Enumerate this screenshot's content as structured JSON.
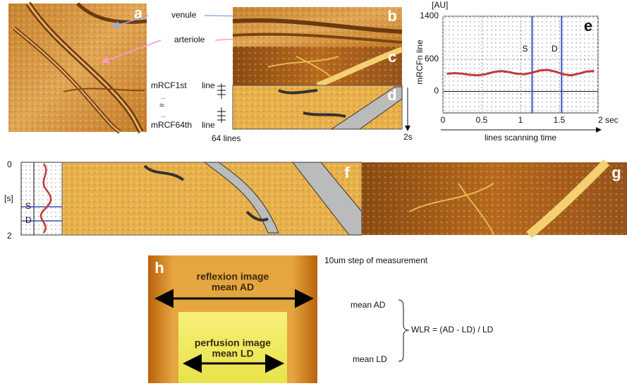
{
  "panels": {
    "a": "a",
    "b": "b",
    "c": "c",
    "d": "d",
    "f": "f",
    "g": "g",
    "h": "h"
  },
  "annotations": {
    "venule": "venule",
    "arteriole": "arteriole",
    "first_line": "mRCF1st",
    "first_line_suffix": "line",
    "dots_top": "...",
    "approx": "≈",
    "dots_bottom": "...",
    "last_line": "mRCF64th",
    "last_line_suffix": "line",
    "lines_count": "64 lines",
    "duration": "2s"
  },
  "strip": {
    "top": "0",
    "unit": "[s]",
    "bottom": "2",
    "systole": "S",
    "diastole": "D"
  },
  "plot_e": {
    "type": "line",
    "panel_label": "e",
    "y_unit": "[AU]",
    "y_label": "mRCFn line",
    "x_label": "lines scanning time",
    "ylim": [
      -400,
      1400
    ],
    "yticks": [
      0,
      600,
      1400
    ],
    "xlim": [
      0,
      2
    ],
    "xticks": [
      0,
      0.5,
      1,
      1.5,
      {
        "value": 2,
        "label": "2 sec"
      }
    ],
    "grid": true,
    "series": [
      {
        "color": "#c0393b",
        "x": [
          0.05,
          0.15,
          0.25,
          0.35,
          0.45,
          0.55,
          0.65,
          0.75,
          0.85,
          0.95,
          1.05,
          1.15,
          1.25,
          1.35,
          1.45,
          1.55,
          1.65,
          1.75,
          1.85,
          1.95
        ],
        "values": [
          330,
          340,
          330,
          310,
          300,
          320,
          360,
          380,
          360,
          330,
          320,
          350,
          390,
          400,
          370,
          320,
          300,
          330,
          370,
          380
        ]
      }
    ],
    "markers": [
      {
        "label": "S",
        "x": 1.15
      },
      {
        "label": "D",
        "x": 1.53
      }
    ],
    "marker_color": "#3a4fc4"
  },
  "panel_h": {
    "step_note": "10um step of measurement",
    "reflexion": "reflexion image",
    "mean_ad": "mean AD",
    "perfusion": "perfusion image",
    "mean_ld": "mean LD"
  },
  "formula": {
    "mean_ad": "mean AD",
    "mean_ld": "mean LD",
    "wlr": "WLR = (AD - LD) / LD"
  }
}
